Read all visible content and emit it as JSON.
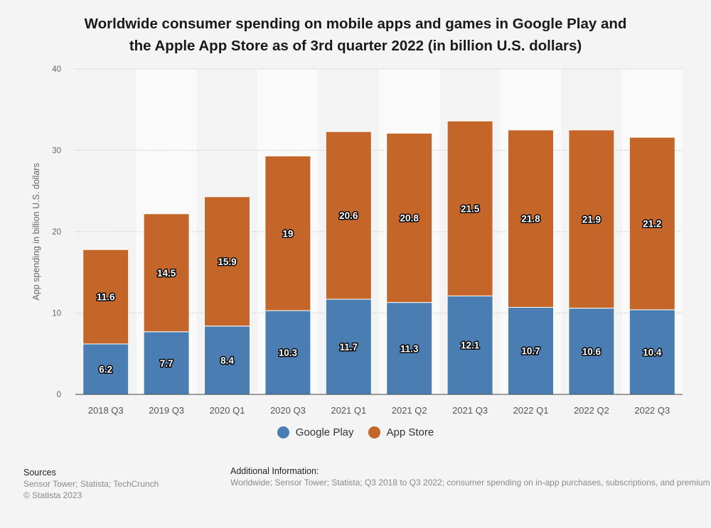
{
  "title_line1": "Worldwide consumer spending on mobile apps and games in Google Play and",
  "title_line2": "the Apple App Store as of 3rd quarter 2022 (in billion U.S. dollars)",
  "chart_data": {
    "type": "bar",
    "stacked": true,
    "categories": [
      "2018 Q3",
      "2019 Q3",
      "2020 Q1",
      "2020 Q3",
      "2021 Q1",
      "2021 Q2",
      "2021 Q3",
      "2022 Q1",
      "2022 Q2",
      "2022 Q3"
    ],
    "series": [
      {
        "name": "Google Play",
        "color": "#4a7eb2",
        "values": [
          6.2,
          7.7,
          8.4,
          10.3,
          11.7,
          11.3,
          12.1,
          10.7,
          10.6,
          10.4
        ]
      },
      {
        "name": "App Store",
        "color": "#c4652a",
        "values": [
          11.6,
          14.5,
          15.9,
          19,
          20.6,
          20.8,
          21.5,
          21.8,
          21.9,
          21.2
        ]
      }
    ],
    "ylabel": "App spending in billion U.S. dollars",
    "xlabel": "",
    "ylim": [
      0,
      40
    ],
    "yticks": [
      "0",
      "10",
      "20",
      "30",
      "40"
    ],
    "grid": true,
    "legend_position": "bottom"
  },
  "legend": {
    "google_play": "Google Play",
    "app_store": "App Store"
  },
  "sources": {
    "heading": "Sources",
    "line1": "Sensor Tower; Statista; TechCrunch",
    "line2": "© Statista 2023"
  },
  "additional_info": {
    "heading": "Additional Information:",
    "text": "Worldwide; Sensor Tower; Statista; Q3 2018 to Q3 2022; consumer spending on in-app purchases, subscriptions, and premium apps"
  }
}
